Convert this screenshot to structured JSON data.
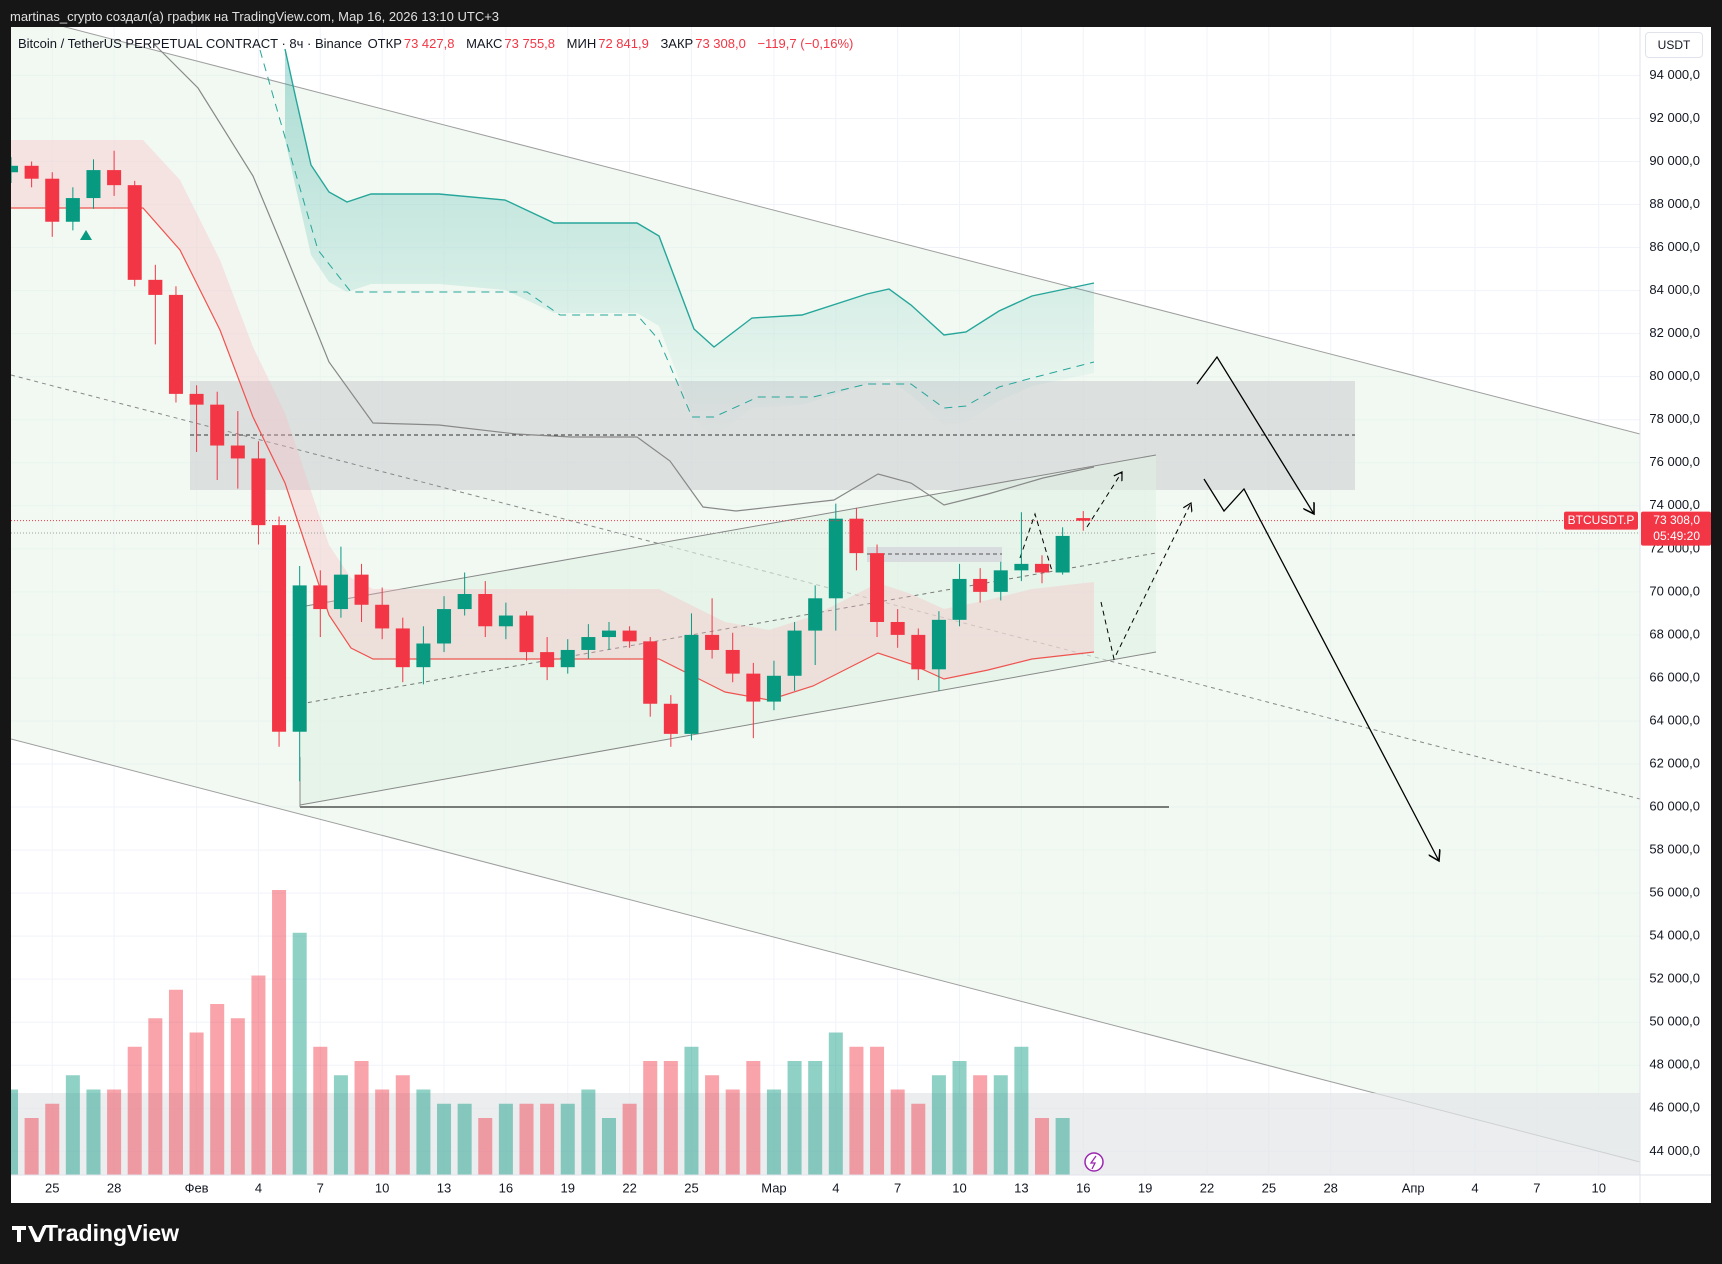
{
  "header": {
    "credit": "martinas_crypto создал(а) график на TradingView.com, Мар 16, 2026 13:10 UTC+3"
  },
  "footer": {
    "brand": "TradingView"
  },
  "chart_data": {
    "type": "candlestick",
    "title": "Bitcoin / TetherUS PERPETUAL CONTRACT · 8ч · Binance",
    "currency": "USDT",
    "up_color": "#089981",
    "down_color": "#f23645",
    "legend": {
      "labels": [
        "ОТКР",
        "МАКС",
        "МИН",
        "ЗАКР"
      ],
      "x": "2026-03-16",
      "values": [
        73427.8,
        73755.8,
        72841.9,
        73308.0
      ],
      "value_labels": [
        "73 427,8",
        "73 755,8",
        "72 841,9",
        "73 308,0"
      ],
      "change": "−119,7 (−0,16%)"
    },
    "price_tag": {
      "symbol": "BTCUSDT.P",
      "label": "73 308,0",
      "countdown": "05:49:20"
    },
    "xlim": [
      "2026-01-23",
      "2026-04-12"
    ],
    "xticks": [
      {
        "value": "2026-01-25",
        "label": "25"
      },
      {
        "value": "2026-01-28",
        "label": "28"
      },
      {
        "value": "2026-02-01",
        "label": "Фев"
      },
      {
        "value": "2026-02-04",
        "label": "4"
      },
      {
        "value": "2026-02-07",
        "label": "7"
      },
      {
        "value": "2026-02-10",
        "label": "10"
      },
      {
        "value": "2026-02-13",
        "label": "13"
      },
      {
        "value": "2026-02-16",
        "label": "16"
      },
      {
        "value": "2026-02-19",
        "label": "19"
      },
      {
        "value": "2026-02-22",
        "label": "22"
      },
      {
        "value": "2026-02-25",
        "label": "25"
      },
      {
        "value": "2026-03-01",
        "label": "Мар"
      },
      {
        "value": "2026-03-04",
        "label": "4"
      },
      {
        "value": "2026-03-07",
        "label": "7"
      },
      {
        "value": "2026-03-10",
        "label": "10"
      },
      {
        "value": "2026-03-13",
        "label": "13"
      },
      {
        "value": "2026-03-16",
        "label": "16"
      },
      {
        "value": "2026-03-19",
        "label": "19"
      },
      {
        "value": "2026-03-22",
        "label": "22"
      },
      {
        "value": "2026-03-25",
        "label": "25"
      },
      {
        "value": "2026-03-28",
        "label": "28"
      },
      {
        "value": "2026-04-01",
        "label": "Апр"
      },
      {
        "value": "2026-04-04",
        "label": "4"
      },
      {
        "value": "2026-04-07",
        "label": "7"
      },
      {
        "value": "2026-04-10",
        "label": "10"
      }
    ],
    "ylim": [
      42900,
      96250
    ],
    "yticks": [
      {
        "value": 44000,
        "label": "44 000,0"
      },
      {
        "value": 46000,
        "label": "46 000,0"
      },
      {
        "value": 48000,
        "label": "48 000,0"
      },
      {
        "value": 50000,
        "label": "50 000,0"
      },
      {
        "value": 52000,
        "label": "52 000,0"
      },
      {
        "value": 54000,
        "label": "54 000,0"
      },
      {
        "value": 56000,
        "label": "56 000,0"
      },
      {
        "value": 58000,
        "label": "58 000,0"
      },
      {
        "value": 60000,
        "label": "60 000,0"
      },
      {
        "value": 62000,
        "label": "62 000,0"
      },
      {
        "value": 64000,
        "label": "64 000,0"
      },
      {
        "value": 66000,
        "label": "66 000,0"
      },
      {
        "value": 68000,
        "label": "68 000,0"
      },
      {
        "value": 70000,
        "label": "70 000,0"
      },
      {
        "value": 72000,
        "label": "72 000,0"
      },
      {
        "value": 74000,
        "label": "74 000,0"
      },
      {
        "value": 76000,
        "label": "76 000,0"
      },
      {
        "value": 78000,
        "label": "78 000,0"
      },
      {
        "value": 80000,
        "label": "80 000,0"
      },
      {
        "value": 82000,
        "label": "82 000,0"
      },
      {
        "value": 84000,
        "label": "84 000,0"
      },
      {
        "value": 86000,
        "label": "86 000,0"
      },
      {
        "value": 88000,
        "label": "88 000,0"
      },
      {
        "value": 90000,
        "label": "90 000,0"
      },
      {
        "value": 92000,
        "label": "92 000,0"
      },
      {
        "value": 94000,
        "label": "94 000,0"
      }
    ],
    "grid": true,
    "candles": {
      "x": [
        "2026-01-23",
        "2026-01-24",
        "2026-01-25",
        "2026-01-26",
        "2026-01-27",
        "2026-01-28",
        "2026-01-29",
        "2026-01-30",
        "2026-01-31",
        "2026-02-01",
        "2026-02-02",
        "2026-02-03",
        "2026-02-04",
        "2026-02-05",
        "2026-02-06",
        "2026-02-07",
        "2026-02-08",
        "2026-02-09",
        "2026-02-10",
        "2026-02-11",
        "2026-02-12",
        "2026-02-13",
        "2026-02-14",
        "2026-02-15",
        "2026-02-16",
        "2026-02-17",
        "2026-02-18",
        "2026-02-19",
        "2026-02-20",
        "2026-02-21",
        "2026-02-22",
        "2026-02-23",
        "2026-02-24",
        "2026-02-25",
        "2026-02-26",
        "2026-02-27",
        "2026-02-28",
        "2026-03-01",
        "2026-03-02",
        "2026-03-03",
        "2026-03-04",
        "2026-03-05",
        "2026-03-06",
        "2026-03-07",
        "2026-03-08",
        "2026-03-09",
        "2026-03-10",
        "2026-03-11",
        "2026-03-12",
        "2026-03-13",
        "2026-03-14",
        "2026-03-15"
      ],
      "open": [
        89500,
        89800,
        89200,
        87200,
        88300,
        89600,
        88900,
        84500,
        83800,
        79200,
        78700,
        76800,
        76200,
        73100,
        63500,
        70300,
        69200,
        70800,
        69400,
        68300,
        66500,
        67600,
        69200,
        69900,
        68400,
        68900,
        67200,
        66500,
        67300,
        67900,
        68200,
        67700,
        64800,
        63400,
        68000,
        67300,
        66200,
        64900,
        66100,
        68200,
        69700,
        73400,
        71800,
        68600,
        68000,
        66400,
        68700,
        70600,
        70000,
        71000,
        71300,
        70900
      ],
      "high": [
        90200,
        90000,
        89500,
        88800,
        90100,
        90500,
        89100,
        85200,
        84200,
        79600,
        79300,
        78400,
        77000,
        73500,
        71200,
        71000,
        72100,
        71300,
        70200,
        68800,
        68400,
        69800,
        70900,
        70500,
        69500,
        69100,
        67900,
        67800,
        68500,
        68600,
        68400,
        67900,
        65200,
        69000,
        69700,
        68100,
        66700,
        66800,
        68600,
        70300,
        74100,
        73900,
        72200,
        69200,
        68300,
        69100,
        71300,
        71100,
        71400,
        73700,
        71700,
        73000
      ],
      "low": [
        89000,
        88800,
        86500,
        86800,
        87800,
        88400,
        84200,
        81500,
        78800,
        76500,
        75200,
        74800,
        72200,
        62800,
        61200,
        67900,
        68800,
        68600,
        67800,
        65800,
        65700,
        67200,
        68900,
        67900,
        67800,
        66800,
        65900,
        66200,
        66900,
        67300,
        67400,
        64200,
        62800,
        63100,
        66900,
        65800,
        63200,
        64500,
        65400,
        66600,
        68200,
        71000,
        67900,
        67400,
        65900,
        65400,
        68400,
        69500,
        69600,
        70500,
        70400,
        70800
      ],
      "close": [
        89800,
        89200,
        87200,
        88300,
        89600,
        88900,
        84500,
        83800,
        79200,
        78700,
        76800,
        76200,
        73100,
        63500,
        70300,
        69200,
        70800,
        69400,
        68300,
        66500,
        67600,
        69200,
        69900,
        68400,
        68900,
        67200,
        66500,
        67300,
        67900,
        68200,
        67700,
        64800,
        63400,
        68000,
        67300,
        66200,
        64900,
        66100,
        68200,
        69700,
        73400,
        71800,
        68600,
        68000,
        66400,
        68700,
        70600,
        70000,
        71000,
        71300,
        70900,
        72600
      ]
    },
    "volume": {
      "vlim": [
        0,
        100
      ],
      "values": [
        30,
        20,
        25,
        35,
        30,
        30,
        45,
        55,
        65,
        50,
        60,
        55,
        70,
        100,
        85,
        45,
        35,
        40,
        30,
        35,
        30,
        25,
        25,
        20,
        25,
        25,
        25,
        25,
        30,
        20,
        25,
        40,
        40,
        45,
        35,
        30,
        40,
        30,
        40,
        40,
        50,
        45,
        45,
        30,
        25,
        35,
        40,
        35,
        35,
        45,
        20,
        20
      ]
    }
  }
}
